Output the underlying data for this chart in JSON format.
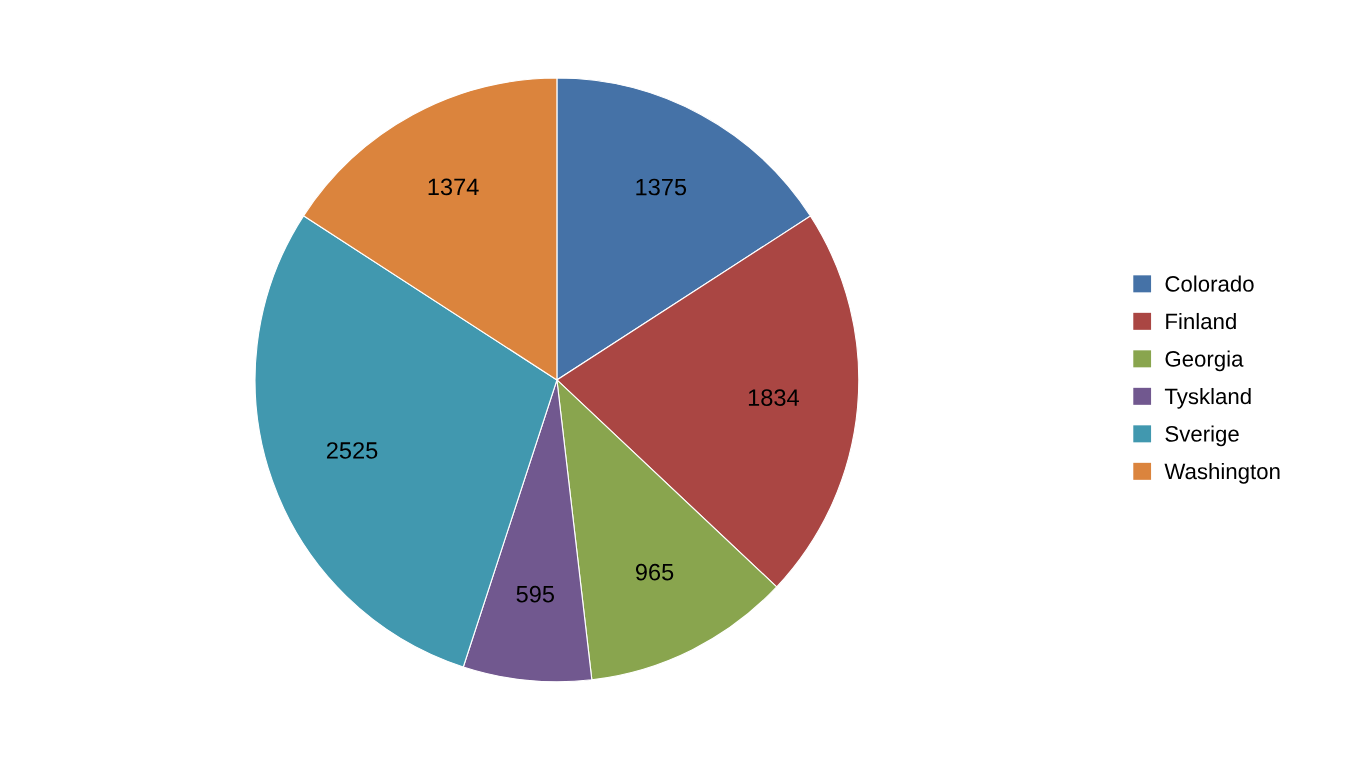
{
  "chart_data": {
    "type": "pie",
    "categories": [
      "Colorado",
      "Finland",
      "Georgia",
      "Tyskland",
      "Sverige",
      "Washington"
    ],
    "values": [
      1375,
      1834,
      965,
      595,
      2525,
      1374
    ],
    "colors": [
      "#4572a7",
      "#aa4643",
      "#89a54e",
      "#71588f",
      "#4198af",
      "#db843d"
    ],
    "data_labels": true,
    "legend": "right"
  }
}
